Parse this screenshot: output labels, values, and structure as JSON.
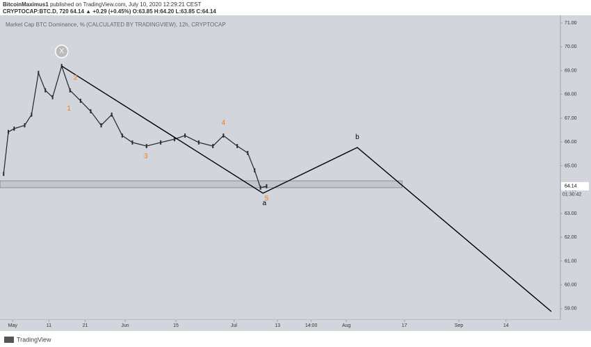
{
  "header": {
    "author": "BitcoinMaximus1",
    "published": "published on TradingView.com, July 10, 2020 12:29:21 CEST",
    "symbol_line": "CRYPTOCAP:BTC.D, 720  64.14 ▲ +0.29 (+0.45%)  O:63.85 H:64.20 L:63.85 C:64.14"
  },
  "chart_data": {
    "type": "line",
    "title": "Market Cap BTC Dominance, % (CALCULATED BY TRADINGVIEW), 12h, CRYPTOCAP",
    "x": [
      -2.5,
      -1.2,
      0.4,
      3.3,
      5.2,
      7.1,
      9,
      11,
      13.5,
      15.8,
      18.7,
      21.5,
      24.4,
      27.3,
      30.2,
      33,
      36.9,
      40.8,
      44.6,
      47.5,
      51.3,
      55.2,
      58.1,
      61.9,
      64.8,
      66.7,
      68.3,
      70
    ],
    "series": [
      {
        "color": "#2a2e39",
        "values": [
          64.66,
          66.42,
          66.56,
          66.7,
          67.15,
          68.9,
          68.17,
          67.88,
          69.19,
          68.17,
          67.73,
          67.29,
          66.7,
          67.15,
          66.27,
          65.98,
          65.83,
          65.98,
          66.12,
          66.27,
          65.98,
          65.83,
          66.27,
          65.83,
          65.54,
          64.81,
          64.08,
          64.14
        ]
      }
    ],
    "projection": {
      "x": [
        13.5,
        69,
        95,
        148.5
      ],
      "values": [
        69.19,
        63.85,
        65.77,
        58.88
      ],
      "color": "#000000"
    },
    "support_zone": [
      64.08,
      64.37
    ],
    "annotations": [
      {
        "text": "X",
        "x": 13.5,
        "y": 69.8,
        "color": "#ffffff"
      },
      {
        "text": "1",
        "x": 15.5,
        "y": 67.4,
        "color": "#f57c00"
      },
      {
        "text": "2",
        "x": 17.3,
        "y": 68.7,
        "color": "#f57c00"
      },
      {
        "text": "3",
        "x": 36.7,
        "y": 65.4,
        "color": "#f57c00"
      },
      {
        "text": "4",
        "x": 58.1,
        "y": 66.8,
        "color": "#f57c00"
      },
      {
        "text": "5",
        "x": 70,
        "y": 63.62,
        "color": "#f57c00"
      },
      {
        "text": "a",
        "x": 69.4,
        "y": 63.43,
        "color": "#000000"
      },
      {
        "text": "b",
        "x": 95,
        "y": 66.2,
        "color": "#000000"
      }
    ],
    "last_price": {
      "value": 64.14,
      "label": "64.14"
    },
    "countdown": "01:30:42",
    "xlim": [
      -3.5,
      151
    ],
    "ylim": [
      58.53,
      71.32
    ],
    "xticks": [
      {
        "value": 0,
        "label": "May"
      },
      {
        "value": 10,
        "label": "11"
      },
      {
        "value": 20,
        "label": "21"
      },
      {
        "value": 31,
        "label": "Jun"
      },
      {
        "value": 45,
        "label": "15"
      },
      {
        "value": 61,
        "label": "Jul"
      },
      {
        "value": 73,
        "label": "13"
      },
      {
        "value": 82.3,
        "label": "14:00"
      },
      {
        "value": 92,
        "label": "Aug"
      },
      {
        "value": 108,
        "label": "17"
      },
      {
        "value": 123,
        "label": "Sep"
      },
      {
        "value": 136,
        "label": "14"
      }
    ],
    "yticks": [
      {
        "value": 59,
        "label": "59.00"
      },
      {
        "value": 60,
        "label": "60.00"
      },
      {
        "value": 61,
        "label": "61.00"
      },
      {
        "value": 62,
        "label": "62.00"
      },
      {
        "value": 63,
        "label": "63.00"
      },
      {
        "value": 64,
        "label": "64.00"
      },
      {
        "value": 65,
        "label": "65.00"
      },
      {
        "value": 66,
        "label": "66.00"
      },
      {
        "value": 67,
        "label": "67.00"
      },
      {
        "value": 68,
        "label": "68.00"
      },
      {
        "value": 69,
        "label": "69.00"
      },
      {
        "value": 70,
        "label": "70.00"
      },
      {
        "value": 71,
        "label": "71.00"
      }
    ]
  },
  "footer": {
    "brand": "TradingView"
  }
}
